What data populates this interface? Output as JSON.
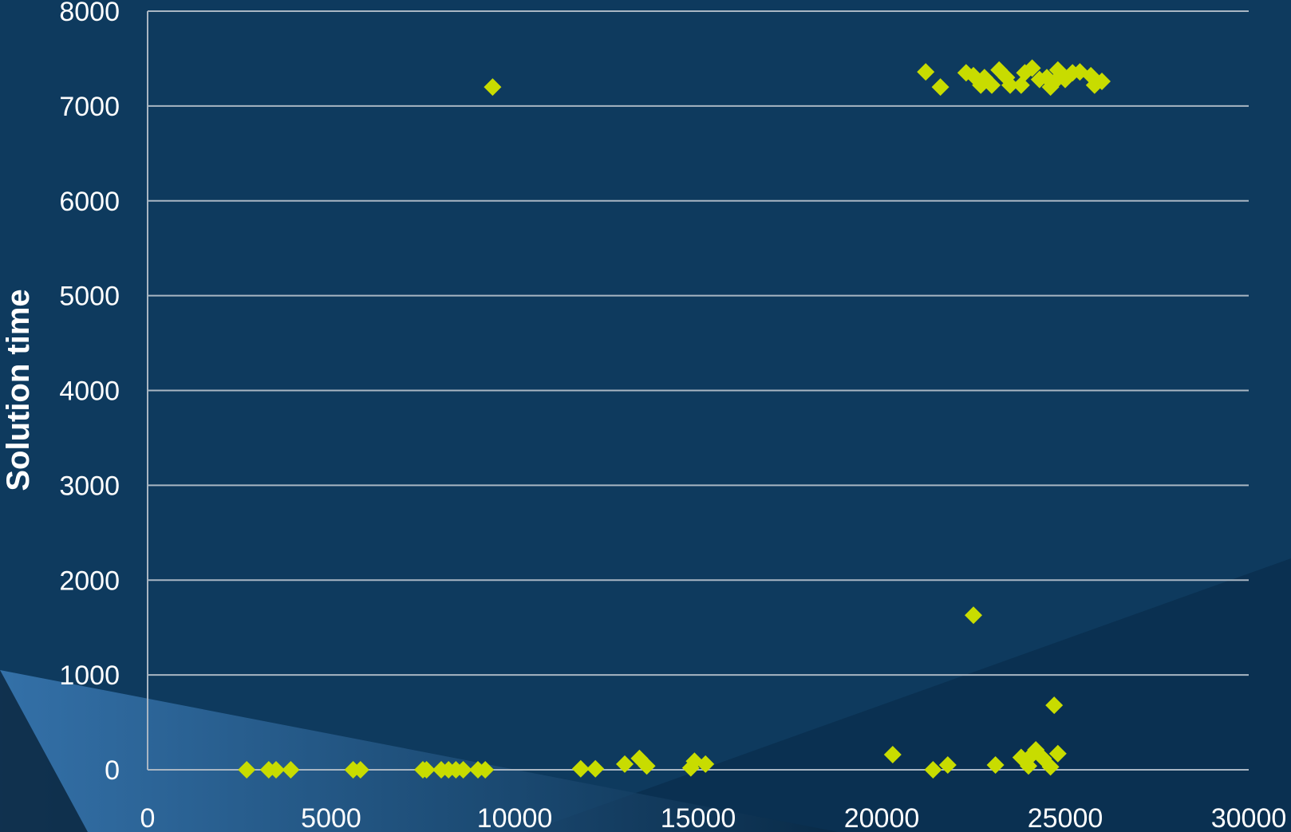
{
  "colors": {
    "background": "#0e3a5e",
    "gridline": "#a9b6c3",
    "marker": "#c8dc00",
    "text": "#ffffff"
  },
  "chart_data": {
    "type": "scatter",
    "title": "",
    "xlabel": "",
    "ylabel": "Solution time",
    "xlim": [
      0,
      30000
    ],
    "ylim": [
      0,
      8000
    ],
    "x_ticks": [
      0,
      5000,
      10000,
      15000,
      20000,
      25000,
      30000
    ],
    "y_ticks": [
      0,
      1000,
      2000,
      3000,
      4000,
      5000,
      6000,
      7000,
      8000
    ],
    "grid": "horizontal",
    "marker": "diamond",
    "series": [
      {
        "points": [
          [
            2700,
            0
          ],
          [
            3300,
            0
          ],
          [
            3500,
            0
          ],
          [
            3900,
            0
          ],
          [
            5600,
            0
          ],
          [
            5800,
            0
          ],
          [
            7500,
            0
          ],
          [
            7600,
            0
          ],
          [
            8000,
            0
          ],
          [
            8200,
            0
          ],
          [
            8400,
            0
          ],
          [
            8600,
            0
          ],
          [
            9000,
            0
          ],
          [
            9200,
            0
          ],
          [
            9400,
            7200
          ],
          [
            11800,
            10
          ],
          [
            12200,
            10
          ],
          [
            13000,
            60
          ],
          [
            13400,
            120
          ],
          [
            13600,
            40
          ],
          [
            14800,
            20
          ],
          [
            14900,
            90
          ],
          [
            15200,
            60
          ],
          [
            20300,
            160
          ],
          [
            21200,
            7360
          ],
          [
            21400,
            0
          ],
          [
            21600,
            7200
          ],
          [
            21800,
            50
          ],
          [
            22300,
            7350
          ],
          [
            22500,
            1630
          ],
          [
            22500,
            7320
          ],
          [
            22700,
            7220
          ],
          [
            22800,
            7300
          ],
          [
            23000,
            7220
          ],
          [
            23100,
            50
          ],
          [
            23200,
            7380
          ],
          [
            23400,
            7300
          ],
          [
            23500,
            7220
          ],
          [
            23800,
            7220
          ],
          [
            23800,
            130
          ],
          [
            23900,
            7350
          ],
          [
            24000,
            40
          ],
          [
            24100,
            7400
          ],
          [
            24100,
            160
          ],
          [
            24200,
            210
          ],
          [
            24300,
            7280
          ],
          [
            24400,
            120
          ],
          [
            24500,
            7300
          ],
          [
            24600,
            7200
          ],
          [
            24600,
            30
          ],
          [
            24700,
            680
          ],
          [
            24700,
            7250
          ],
          [
            24800,
            7380
          ],
          [
            24800,
            170
          ],
          [
            25000,
            7280
          ],
          [
            25200,
            7350
          ],
          [
            25400,
            7360
          ],
          [
            25700,
            7320
          ],
          [
            25800,
            7220
          ],
          [
            26000,
            7260
          ]
        ]
      }
    ]
  }
}
